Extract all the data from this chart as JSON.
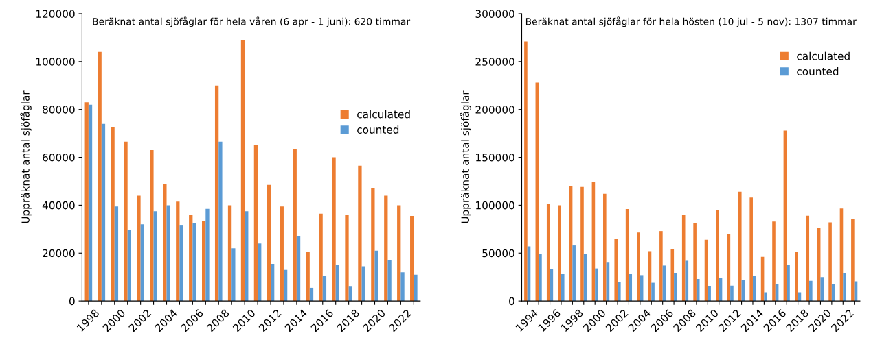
{
  "chart_data": [
    {
      "type": "bar",
      "title": "Beräknat antal sjöfåglar för hela våren (6 apr - 1 juni): 620 timmar",
      "ylabel": "Uppräknat antal sjöfåglar",
      "categories": [
        "1998",
        null,
        "2000",
        null,
        "2002",
        null,
        "2004",
        null,
        "2006",
        null,
        "2008",
        null,
        "2010",
        null,
        "2012",
        null,
        "2014",
        null,
        "2016",
        null,
        "2018",
        null,
        "2020",
        null,
        "2022",
        null
      ],
      "series": [
        {
          "name": "calculated",
          "color": "#ed7d31",
          "values": [
            83000,
            104000,
            72500,
            66500,
            44000,
            63000,
            49000,
            41500,
            36000,
            33500,
            90000,
            40000,
            109000,
            65000,
            48500,
            39500,
            63500,
            20500,
            36500,
            60000,
            36000,
            56500,
            47000,
            44000,
            40000,
            35500
          ]
        },
        {
          "name": "counted",
          "color": "#5b9bd5",
          "values": [
            82000,
            74000,
            39500,
            29500,
            32000,
            37500,
            40000,
            31500,
            32500,
            38500,
            66500,
            22000,
            37500,
            24000,
            15500,
            13000,
            27000,
            5500,
            10500,
            15000,
            6000,
            14500,
            21000,
            17000,
            12000,
            11000
          ]
        }
      ],
      "ylim": [
        0,
        120000
      ],
      "yticks": [
        0,
        20000,
        40000,
        60000,
        80000,
        100000,
        120000
      ],
      "legend": "right",
      "grid": false
    },
    {
      "type": "bar",
      "title": "Beräknat antal sjöfåglar för hela hösten (10 jul - 5 nov): 1307 timmar",
      "ylabel": "Uppräknat antal sjöfåglar",
      "categories": [
        "1994",
        null,
        "1996",
        null,
        "1998",
        null,
        "2000",
        null,
        "2002",
        null,
        "2004",
        null,
        "2006",
        null,
        "2008",
        null,
        "2010",
        null,
        "2012",
        null,
        "2014",
        null,
        "2016",
        null,
        "2018",
        null,
        "2020",
        null,
        "2022",
        null
      ],
      "series": [
        {
          "name": "calculated",
          "color": "#ed7d31",
          "values": [
            271000,
            228000,
            101000,
            100000,
            120000,
            119000,
            124000,
            112000,
            65000,
            96000,
            71500,
            52000,
            73000,
            54000,
            90000,
            81000,
            64000,
            95000,
            70000,
            114000,
            108000,
            46000,
            83000,
            178000,
            51000,
            89000,
            76000,
            82000,
            96500,
            86000
          ]
        },
        {
          "name": "counted",
          "color": "#5b9bd5",
          "values": [
            57000,
            49000,
            33000,
            28000,
            58000,
            49000,
            34000,
            40000,
            20000,
            28000,
            27000,
            19000,
            37000,
            29000,
            42000,
            23000,
            15500,
            24500,
            16000,
            22000,
            26500,
            9000,
            17500,
            38000,
            9000,
            21000,
            25000,
            18000,
            29000,
            20500
          ]
        }
      ],
      "ylim": [
        0,
        300000
      ],
      "yticks": [
        0,
        50000,
        100000,
        150000,
        200000,
        250000,
        300000
      ],
      "legend": "upper right",
      "grid": false
    }
  ]
}
